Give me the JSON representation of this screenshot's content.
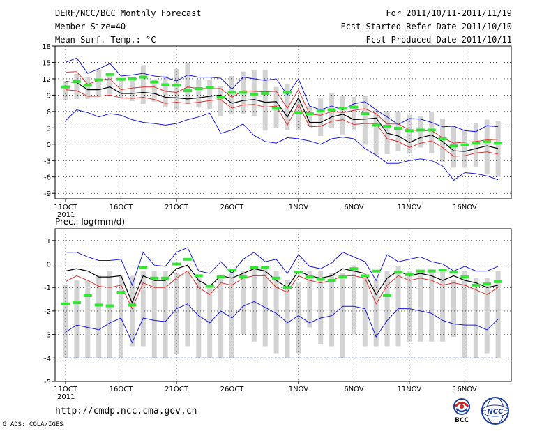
{
  "header": {
    "title": "DERF/NCC/BCC Monthly Forecast",
    "member_size": "Member Size=40",
    "variable": "Mean Surf. Temp.: °C",
    "for_period": "For 2011/10/11-2011/11/19",
    "started": "Fcst Started Refer Date 2011/10/10",
    "produced": "Fcst Produced Date 2011/10/11"
  },
  "footer": {
    "url": "http://cmdp.ncc.cma.gov.cn",
    "credit": "GrADS: COLA/IGES",
    "logo_bcc": "BCC",
    "logo_ncc": "NCC"
  },
  "colors": {
    "bar": "#d3d3d3",
    "mean": "#000000",
    "sigma": "#e03030",
    "extreme": "#1818e0",
    "obs": "#33e633",
    "floor": "#3355cc"
  },
  "chart_data": [
    {
      "type": "line",
      "title": "Mean Surf. Temp.: °C",
      "year_label": "2011",
      "x_tick_labels": [
        "11OCT",
        "16OCT",
        "21OCT",
        "26OCT",
        "1NOV",
        "6NOV",
        "11NOV",
        "16NOV"
      ],
      "x_tick_days": [
        1,
        6,
        11,
        16,
        22,
        27,
        32,
        37
      ],
      "n_days": 40,
      "ylim": [
        -10,
        18
      ],
      "y_ticks": [
        -9,
        -6,
        -3,
        0,
        3,
        6,
        9,
        12,
        15,
        18
      ],
      "series": [
        {
          "name": "max",
          "values": [
            15.0,
            15.8,
            13.0,
            13.8,
            14.8,
            12.5,
            12.7,
            13.0,
            12.5,
            12.3,
            11.6,
            12.7,
            12.3,
            12.3,
            12.1,
            10.1,
            12.3,
            12.0,
            11.7,
            12.0,
            9.0,
            12.0,
            7.0,
            6.3,
            7.0,
            6.3,
            7.4,
            7.8,
            6.3,
            5.0,
            3.6,
            4.7,
            4.6,
            4.0,
            3.2,
            3.3,
            2.5,
            2.3,
            3.4,
            3.2
          ]
        },
        {
          "name": "mean+sigma",
          "values": [
            13.2,
            13.3,
            11.0,
            11.7,
            12.0,
            10.0,
            10.3,
            10.5,
            10.5,
            9.7,
            9.5,
            10.5,
            10.2,
            10.2,
            10.2,
            8.6,
            9.8,
            9.7,
            9.6,
            9.7,
            6.6,
            10.0,
            5.5,
            5.3,
            6.0,
            5.8,
            6.2,
            6.5,
            5.6,
            3.7,
            3.7,
            2.6,
            2.5,
            2.5,
            1.2,
            0.2,
            0.4,
            0.5,
            0.8,
            0.9
          ]
        },
        {
          "name": "mean",
          "values": [
            11.5,
            11.3,
            10.0,
            10.0,
            10.5,
            9.3,
            9.3,
            9.5,
            9.3,
            8.6,
            8.5,
            8.3,
            8.5,
            8.8,
            9.0,
            7.5,
            8.0,
            8.2,
            7.7,
            7.8,
            5.0,
            8.5,
            4.0,
            4.0,
            5.0,
            5.5,
            4.5,
            4.6,
            4.8,
            2.0,
            1.5,
            0.3,
            1.2,
            1.7,
            0.5,
            -1.2,
            -1.3,
            -0.8,
            -0.3,
            -0.8
          ]
        },
        {
          "name": "mean-sigma",
          "values": [
            10.0,
            9.8,
            8.8,
            8.8,
            9.0,
            8.5,
            8.4,
            8.6,
            8.2,
            7.5,
            7.7,
            7.5,
            7.7,
            8.0,
            8.2,
            6.6,
            7.2,
            7.3,
            6.8,
            7.0,
            3.5,
            7.3,
            3.2,
            3.3,
            4.2,
            4.5,
            3.6,
            3.8,
            3.8,
            1.0,
            0.5,
            -0.6,
            0.2,
            0.6,
            -0.6,
            -2.2,
            -2.1,
            -1.6,
            -1.4,
            -1.8
          ]
        },
        {
          "name": "min",
          "values": [
            4.3,
            6.3,
            5.8,
            5.0,
            5.6,
            5.3,
            4.5,
            4.0,
            3.8,
            3.5,
            3.8,
            4.5,
            5.0,
            5.7,
            2.0,
            2.6,
            3.7,
            1.6,
            0.5,
            0.2,
            1.2,
            1.0,
            0.6,
            0.0,
            1.0,
            1.3,
            1.0,
            -0.8,
            -2.0,
            -3.5,
            -3.5,
            -3.0,
            -2.7,
            -3.0,
            -4.0,
            -6.6,
            -5.2,
            -5.4,
            -5.8,
            -6.5
          ]
        },
        {
          "name": "observed",
          "values": [
            10.5,
            11.5,
            10.8,
            11.8,
            12.8,
            11.9,
            12.0,
            12.3,
            11.4,
            10.9,
            10.8,
            9.8,
            10.2,
            10.4,
            8.6,
            9.5,
            9.5,
            9.2,
            9.3,
            6.6,
            9.5,
            5.8,
            5.6,
            6.1,
            6.3,
            6.6,
            6.8,
            5.6,
            3.5,
            3.3,
            2.9,
            2.5,
            2.6,
            2.6,
            1.0,
            -0.3,
            -0.1,
            0.2,
            0.5,
            0.2
          ]
        }
      ],
      "bars": {
        "name": "ensemble range",
        "low": [
          8.1,
          8.3,
          8.3,
          8.8,
          9.1,
          8.5,
          7.9,
          7.4,
          7.8,
          6.9,
          6.3,
          7.4,
          6.7,
          6.5,
          5.1,
          5.5,
          5.5,
          5.2,
          2.5,
          3.0,
          2.6,
          2.5,
          3.4,
          1.5,
          2.9,
          1.8,
          2.7,
          -0.1,
          -1.9,
          -1.8,
          -1.3,
          -1.6,
          -0.6,
          -1.7,
          -3.3,
          -4.3,
          -4.3,
          -4.1,
          -5.5,
          -6.0
        ],
        "high": [
          11.6,
          12.9,
          12.3,
          13.5,
          12.8,
          11.9,
          12.3,
          14.5,
          11.9,
          12.5,
          13.8,
          14.9,
          11.9,
          11.8,
          10.7,
          12.5,
          13.3,
          13.5,
          13.6,
          10.5,
          11.0,
          8.0,
          7.0,
          8.4,
          9.3,
          8.9,
          8.7,
          8.8,
          6.2,
          6.1,
          6.0,
          5.4,
          5.2,
          6.0,
          4.7,
          3.4,
          2.6,
          3.8,
          4.5,
          4.3
        ]
      }
    },
    {
      "type": "line",
      "title": "Prec.: log(mm/d)",
      "year_label": "2011",
      "x_tick_labels": [
        "11OCT",
        "16OCT",
        "21OCT",
        "26OCT",
        "1NOV",
        "6NOV",
        "11NOV",
        "16NOV"
      ],
      "x_tick_days": [
        1,
        6,
        11,
        16,
        22,
        27,
        32,
        37
      ],
      "n_days": 40,
      "ylim": [
        -5,
        1.5
      ],
      "y_ticks": [
        -5,
        -4,
        -3,
        -2,
        -1,
        0,
        1
      ],
      "series": [
        {
          "name": "max",
          "values": [
            0.5,
            0.5,
            0.3,
            0.15,
            0.15,
            0.2,
            -0.9,
            0.5,
            -0.05,
            -0.1,
            0.5,
            0.7,
            -0.3,
            -0.4,
            0.1,
            -0.4,
            0.2,
            0.5,
            0.1,
            0.2,
            -0.4,
            0.4,
            -0.1,
            -0.2,
            0.05,
            0.5,
            0.3,
            0.1,
            -0.7,
            0.4,
            0.1,
            0.2,
            0.3,
            0.1,
            0.0,
            -0.3,
            -0.1,
            -0.3,
            -0.3,
            -0.1
          ]
        },
        {
          "name": "mean",
          "values": [
            -0.3,
            -0.2,
            -0.3,
            -0.55,
            -0.55,
            -0.5,
            -1.65,
            -0.5,
            -0.7,
            -0.7,
            -0.2,
            -0.05,
            -0.7,
            -0.95,
            -0.5,
            -0.6,
            -0.4,
            -0.2,
            -0.3,
            -0.7,
            -1.0,
            -0.3,
            -0.5,
            -0.6,
            -0.5,
            -0.2,
            -0.3,
            -0.4,
            -1.3,
            -0.6,
            -0.3,
            -0.5,
            -0.4,
            -0.5,
            -0.7,
            -0.5,
            -0.7,
            -0.8,
            -1.0,
            -0.9
          ]
        },
        {
          "name": "mean-sigma",
          "values": [
            -0.75,
            -0.5,
            -0.7,
            -0.95,
            -1.0,
            -0.9,
            -1.9,
            -0.8,
            -1.0,
            -1.0,
            -0.6,
            -0.3,
            -1.0,
            -1.3,
            -0.8,
            -0.9,
            -0.6,
            -0.5,
            -0.5,
            -1.0,
            -1.2,
            -0.5,
            -0.7,
            -0.8,
            -0.7,
            -0.5,
            -0.5,
            -0.6,
            -1.7,
            -0.9,
            -0.5,
            -0.7,
            -0.6,
            -0.7,
            -0.9,
            -0.8,
            -0.9,
            -1.1,
            -1.3,
            -1.0
          ]
        },
        {
          "name": "min",
          "values": [
            -2.9,
            -2.6,
            -2.7,
            -2.8,
            -2.5,
            -2.3,
            -3.35,
            -2.3,
            -2.4,
            -2.45,
            -1.9,
            -1.7,
            -2.2,
            -2.5,
            -2.0,
            -2.3,
            -1.8,
            -1.6,
            -1.85,
            -2.1,
            -2.5,
            -2.2,
            -2.5,
            -2.3,
            -2.2,
            -1.8,
            -1.8,
            -1.9,
            -3.1,
            -2.4,
            -1.9,
            -1.9,
            -2.0,
            -2.1,
            -2.4,
            -2.55,
            -2.6,
            -2.6,
            -2.8,
            -2.35
          ]
        },
        {
          "name": "observed",
          "values": [
            -1.7,
            -1.65,
            -1.35,
            -1.75,
            -1.78,
            -1.2,
            -1.75,
            -0.15,
            -0.6,
            -0.6,
            0.0,
            0.2,
            -0.5,
            -0.95,
            -0.55,
            -0.25,
            -0.55,
            -0.15,
            -0.15,
            -0.6,
            -1.0,
            -0.35,
            -0.55,
            -0.65,
            -0.7,
            -0.55,
            -0.2,
            -0.5,
            -0.3,
            -1.35,
            -0.35,
            -0.45,
            -0.3,
            -0.3,
            -0.25,
            -0.35,
            -0.55,
            -0.9,
            -0.85,
            -0.75
          ]
        },
        {
          "name": "floor",
          "values": [
            -4,
            -4,
            -4,
            -4,
            -4,
            -4,
            -4,
            -4,
            -4,
            -4,
            -4,
            -4,
            -4,
            -4,
            -4,
            -4,
            -4,
            -4,
            -4,
            -4,
            -4,
            -4,
            -4,
            -4,
            -4,
            -4,
            -4,
            -4,
            -4,
            -4,
            -4,
            -4,
            -4,
            -4,
            -4,
            -4,
            -4,
            -4,
            -4,
            -4
          ]
        }
      ],
      "bars": {
        "name": "ensemble range",
        "low": [
          -4.0,
          -4.0,
          -4.0,
          -4.0,
          -4.0,
          -4.0,
          -3.5,
          -3.5,
          -4.0,
          -4.0,
          -3.85,
          -3.5,
          -4.0,
          -4.0,
          -4.0,
          -4.0,
          -3.0,
          -3.3,
          -3.5,
          -3.8,
          -4.0,
          -3.8,
          -2.7,
          -3.4,
          -3.5,
          -4.0,
          -3.0,
          -3.5,
          -3.5,
          -3.5,
          -3.5,
          -3.3,
          -3.3,
          -3.3,
          -3.3,
          -3.1,
          -4.0,
          -4.0,
          -3.8,
          -4.0
        ],
        "high": [
          -0.9,
          -0.7,
          -0.7,
          -0.5,
          -0.3,
          -0.5,
          -0.5,
          -0.3,
          -0.3,
          -0.3,
          -0.4,
          -0.3,
          -0.6,
          -0.9,
          -0.6,
          -0.3,
          -0.3,
          -0.1,
          -0.1,
          -0.3,
          -0.7,
          -0.8,
          -0.3,
          -0.3,
          -0.4,
          -0.4,
          -0.05,
          -0.6,
          -0.7,
          -0.3,
          -0.1,
          -0.3,
          -0.3,
          -0.2,
          -0.3,
          -0.7,
          -0.3,
          -0.6,
          -0.6,
          -0.3
        ]
      }
    }
  ]
}
